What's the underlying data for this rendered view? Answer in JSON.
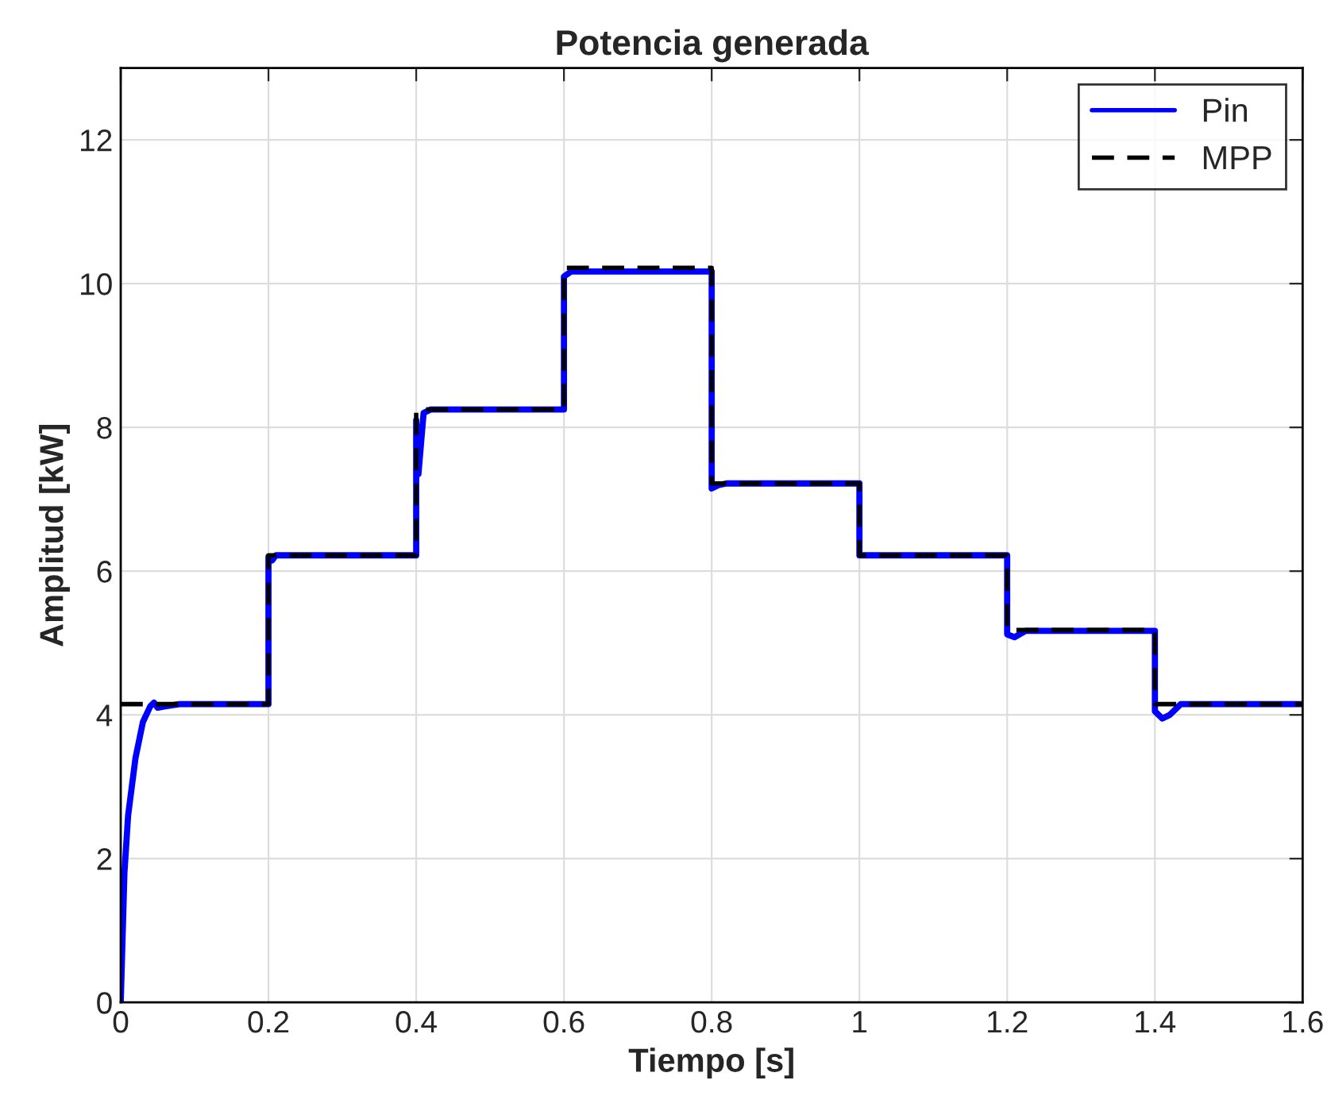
{
  "chart_data": {
    "type": "line",
    "title": "Potencia generada",
    "xlabel": "Tiempo [s]",
    "ylabel": "Amplitud [kW]",
    "xlim": [
      0,
      1.6
    ],
    "xticks": [
      0,
      0.2,
      0.4,
      0.6,
      0.8,
      1,
      1.2,
      1.4,
      1.6
    ],
    "ylim": [
      0,
      13
    ],
    "yticks": [
      0,
      2,
      4,
      6,
      8,
      10,
      12
    ],
    "grid": true,
    "legend": "top right",
    "series": [
      {
        "name": "Pin",
        "color": "#0000ff",
        "line_style": "solid",
        "x": [
          0,
          0.005,
          0.01,
          0.02,
          0.03,
          0.04,
          0.045,
          0.05,
          0.06,
          0.08,
          0.2,
          0.2,
          0.205,
          0.21,
          0.4,
          0.4,
          0.403,
          0.41,
          0.42,
          0.6,
          0.6,
          0.61,
          0.8,
          0.8,
          0.81,
          0.82,
          1.0,
          1.0,
          1.2,
          1.2,
          1.21,
          1.225,
          1.4,
          1.4,
          1.41,
          1.42,
          1.435,
          1.6
        ],
        "values": [
          0,
          1.8,
          2.6,
          3.4,
          3.9,
          4.12,
          4.17,
          4.1,
          4.12,
          4.15,
          4.15,
          6.2,
          6.15,
          6.22,
          6.22,
          8.1,
          7.35,
          8.2,
          8.25,
          8.25,
          10.1,
          10.17,
          10.17,
          7.15,
          7.2,
          7.22,
          7.22,
          6.22,
          6.22,
          5.12,
          5.08,
          5.17,
          5.17,
          4.05,
          3.95,
          4.0,
          4.15,
          4.15
        ]
      },
      {
        "name": "MPP",
        "color": "#000000",
        "line_style": "dashed",
        "x": [
          0,
          0.2,
          0.2,
          0.4,
          0.4,
          0.6,
          0.6,
          0.8,
          0.8,
          1.0,
          1.0,
          1.2,
          1.2,
          1.4,
          1.4,
          1.6
        ],
        "values": [
          4.15,
          4.15,
          6.22,
          6.22,
          8.25,
          8.25,
          10.22,
          10.22,
          7.22,
          7.22,
          6.22,
          6.22,
          5.18,
          5.18,
          4.15,
          4.15
        ]
      }
    ]
  }
}
